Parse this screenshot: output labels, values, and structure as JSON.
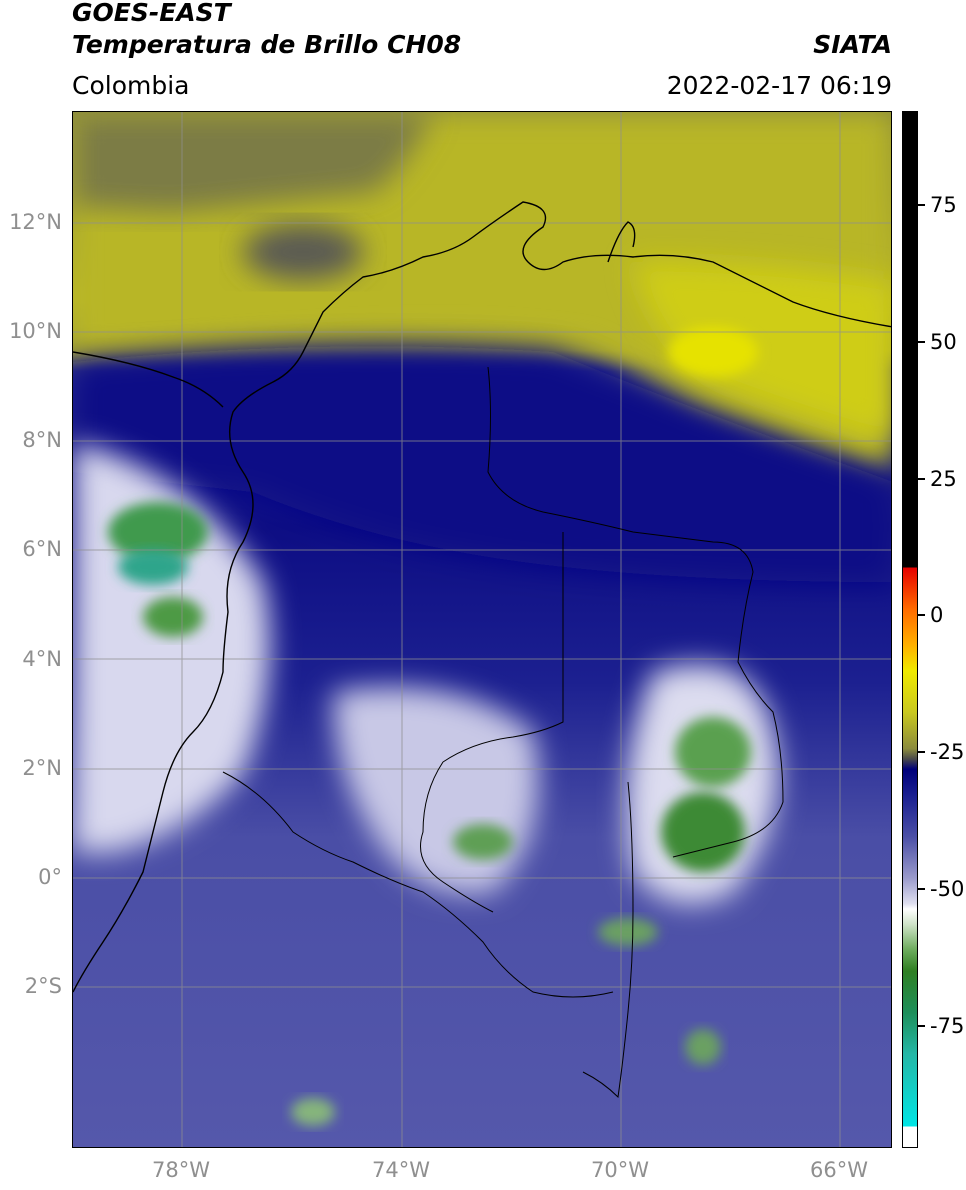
{
  "header": {
    "title_line1": "GOES-EAST",
    "title_line2": "Temperatura de Brillo CH08",
    "agency": "SIATA",
    "region": "Colombia",
    "timestamp": "2022-02-17 06:19"
  },
  "axes": {
    "lat_labels": [
      "12°N",
      "10°N",
      "8°N",
      "6°N",
      "4°N",
      "2°N",
      "0°",
      "2°S"
    ],
    "lon_labels": [
      "78°W",
      "74°W",
      "70°W",
      "66°W"
    ]
  },
  "colorbar": {
    "labels": [
      "75",
      "50",
      "25",
      "0",
      "-25",
      "-50",
      "-75"
    ]
  },
  "colors": {
    "dry_yellow": "#c9c81f",
    "deep_blue": "#0d0d84",
    "mid_blue": "#4b4fa6",
    "cloud_white": "#e8e8f4",
    "cold_green": "#3d8f3a",
    "coast_line": "#000000",
    "grid_line": "#8f8f8f"
  }
}
